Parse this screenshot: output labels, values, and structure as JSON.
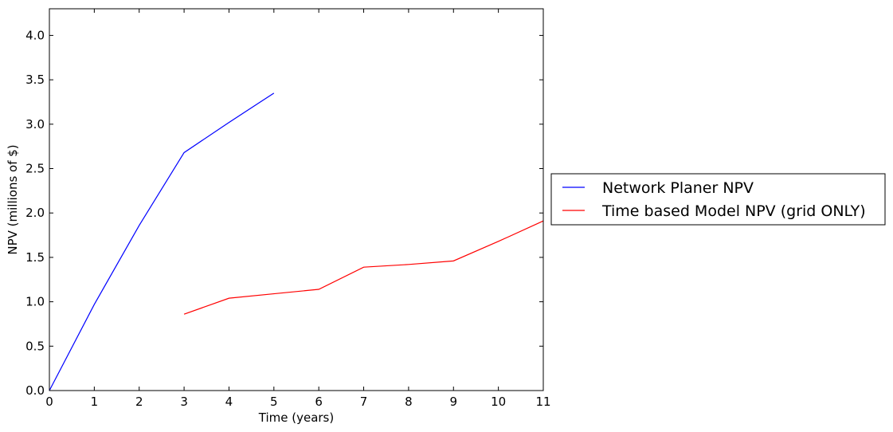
{
  "chart_data": {
    "type": "line",
    "xlabel": "Time (years)",
    "ylabel": "NPV (millions of $)",
    "xlim": [
      0,
      11
    ],
    "ylim": [
      0,
      4.3
    ],
    "xticks": [
      "0",
      "1",
      "2",
      "3",
      "4",
      "5",
      "6",
      "7",
      "8",
      "9",
      "10",
      "11"
    ],
    "yticks": [
      "0.0",
      "0.5",
      "1.0",
      "1.5",
      "2.0",
      "2.5",
      "3.0",
      "3.5",
      "4.0"
    ],
    "grid": false,
    "legend_position": "outside-right",
    "series": [
      {
        "name": "Network Planer NPV",
        "color": "#0000ff",
        "x": [
          0,
          1,
          2,
          3,
          4,
          5
        ],
        "y": [
          0.0,
          0.97,
          1.86,
          2.68,
          3.02,
          3.35
        ]
      },
      {
        "name": "Time based Model NPV (grid ONLY)",
        "color": "#ff0000",
        "x": [
          3,
          4,
          5,
          6,
          7,
          8,
          9,
          10,
          11
        ],
        "y": [
          0.86,
          1.04,
          1.09,
          1.14,
          1.39,
          1.42,
          1.46,
          1.68,
          1.91
        ]
      }
    ]
  }
}
